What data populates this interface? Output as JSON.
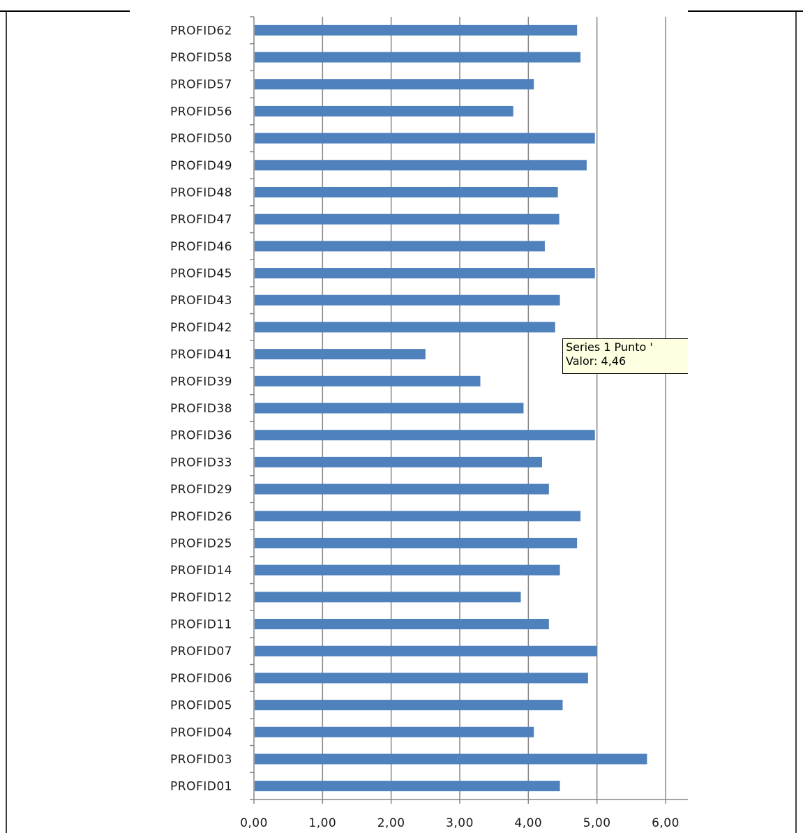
{
  "chart_data": {
    "type": "bar",
    "orientation": "horizontal",
    "categories": [
      "PROFID62",
      "PROFID58",
      "PROFID57",
      "PROFID56",
      "PROFID50",
      "PROFID49",
      "PROFID48",
      "PROFID47",
      "PROFID46",
      "PROFID45",
      "PROFID43",
      "PROFID42",
      "PROFID41",
      "PROFID39",
      "PROFID38",
      "PROFID36",
      "PROFID33",
      "PROFID29",
      "PROFID26",
      "PROFID25",
      "PROFID14",
      "PROFID12",
      "PROFID11",
      "PROFID07",
      "PROFID06",
      "PROFID05",
      "PROFID04",
      "PROFID03",
      "PROFID01"
    ],
    "series": [
      {
        "values": [
          4.71,
          4.76,
          4.08,
          3.78,
          4.97,
          4.85,
          4.43,
          4.45,
          4.24,
          4.97,
          4.46,
          4.39,
          2.5,
          3.3,
          3.93,
          4.97,
          4.2,
          4.3,
          4.76,
          4.71,
          4.46,
          3.89,
          4.3,
          5.0,
          4.87,
          4.5,
          4.08,
          5.73,
          4.46
        ],
        "color": "#4f81bd"
      }
    ],
    "xlim": [
      0,
      6
    ],
    "ticks": [
      "0,00",
      "1,00",
      "2,00",
      "3,00",
      "4,00",
      "5,00",
      "6,00"
    ],
    "grid": true,
    "title": "",
    "xlabel": "",
    "ylabel": ""
  },
  "tooltip": {
    "line1": "Series 1 Punto '",
    "line2": "Valor: 4,46"
  },
  "colors": {
    "bar": "#4f81bd",
    "gridline": "#868686",
    "axis": "#868686",
    "tooltip_bg": "#ffffe1"
  }
}
